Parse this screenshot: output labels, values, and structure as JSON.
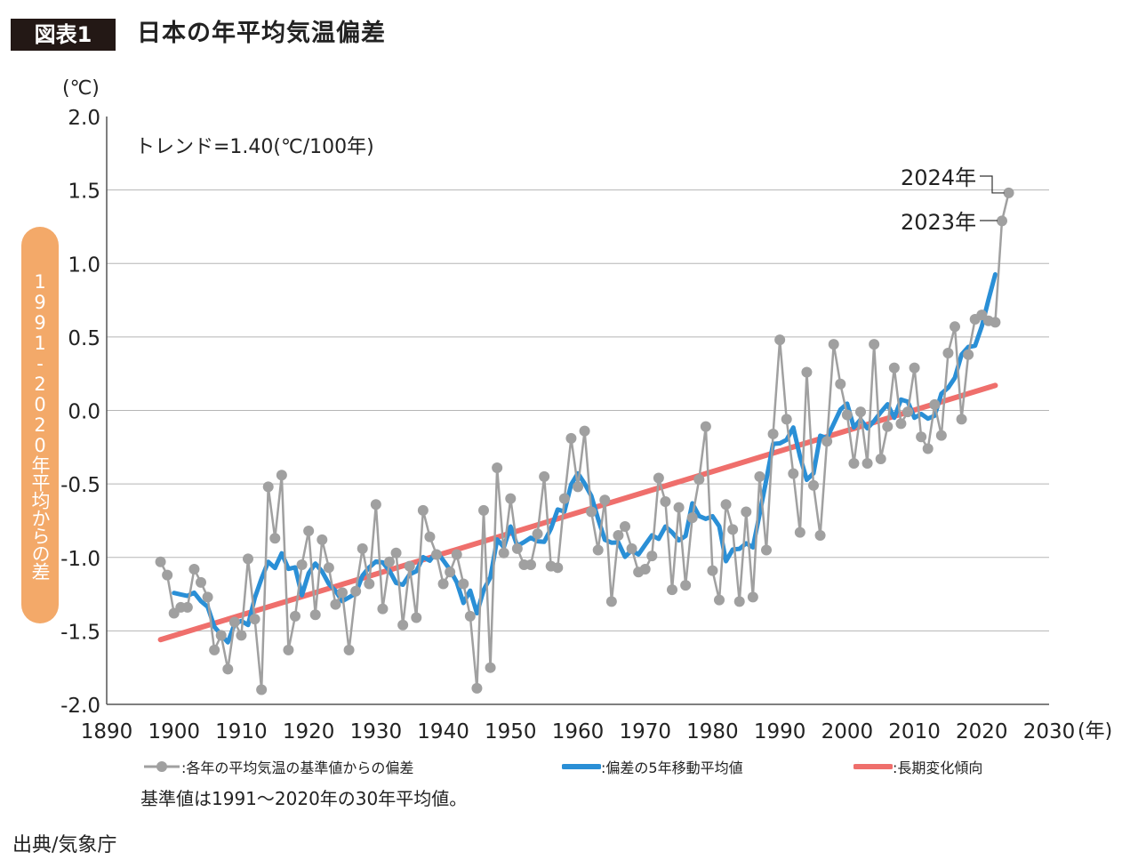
{
  "header": {
    "figure_label": "図表1",
    "title": "日本の年平均気温偏差"
  },
  "side_label": "1991-2020年平均からの差",
  "note": "基準値は1991〜2020年の30年平均値。",
  "source": "出典/気象庁",
  "colors": {
    "points": "#a0a0a0",
    "moving_avg": "#2a8fd6",
    "trend": "#ef6f6c",
    "pill": "#f3a969"
  },
  "chart_data": {
    "type": "line",
    "title": "日本の年平均気温偏差",
    "ylabel": "(℃)",
    "xlabel": "(年)",
    "xlim": [
      1890,
      2030
    ],
    "ylim": [
      -2.0,
      2.0
    ],
    "x_ticks": [
      1890,
      1900,
      1910,
      1920,
      1930,
      1940,
      1950,
      1960,
      1970,
      1980,
      1990,
      2000,
      2010,
      2020,
      2030
    ],
    "y_ticks": [
      "2.0",
      "1.5",
      "1.0",
      "0.5",
      "0.0",
      "-0.5",
      "-1.0",
      "-1.5",
      "-2.0"
    ],
    "grid": true,
    "trend_text": "トレンド=1.40(℃/100年)",
    "legend": [
      ":各年の平均気温の基準値からの偏差",
      ":偏差の5年移動平均値",
      ":長期変化傾向"
    ],
    "legend_position": "bottom",
    "annotations": [
      {
        "year": 2024,
        "text": "2024年"
      },
      {
        "year": 2023,
        "text": "2023年"
      }
    ],
    "series": [
      {
        "name": "各年の平均気温の基準値からの偏差",
        "start_year": 1898,
        "values": [
          -1.03,
          -1.12,
          -1.38,
          -1.34,
          -1.34,
          -1.08,
          -1.17,
          -1.27,
          -1.63,
          -1.53,
          -1.76,
          -1.44,
          -1.53,
          -1.01,
          -1.42,
          -1.9,
          -0.52,
          -0.87,
          -0.44,
          -1.63,
          -1.4,
          -1.05,
          -0.82,
          -1.39,
          -0.88,
          -1.07,
          -1.32,
          -1.24,
          -1.63,
          -1.23,
          -0.94,
          -1.18,
          -0.64,
          -1.35,
          -1.03,
          -0.97,
          -1.46,
          -1.06,
          -1.41,
          -0.68,
          -0.86,
          -0.98,
          -1.18,
          -1.1,
          -0.98,
          -1.18,
          -1.4,
          -1.89,
          -0.68,
          -1.75,
          -0.39,
          -0.97,
          -0.6,
          -0.94,
          -1.05,
          -1.05,
          -0.84,
          -0.45,
          -1.06,
          -1.07,
          -0.6,
          -0.19,
          -0.52,
          -0.14,
          -0.69,
          -0.95,
          -0.61,
          -1.3,
          -0.85,
          -0.79,
          -0.94,
          -1.1,
          -1.08,
          -0.99,
          -0.46,
          -0.62,
          -1.22,
          -0.66,
          -1.19,
          -0.73,
          -0.47,
          -0.11,
          -1.09,
          -1.29,
          -0.64,
          -0.81,
          -1.3,
          -0.69,
          -1.27,
          -0.45,
          -0.95,
          -0.16,
          0.48,
          -0.06,
          -0.43,
          -0.83,
          0.26,
          -0.51,
          -0.85,
          -0.21,
          0.45,
          0.18,
          -0.03,
          -0.36,
          -0.01,
          -0.36,
          0.45,
          -0.33,
          -0.11,
          0.29,
          -0.09,
          -0.01,
          0.29,
          -0.18,
          -0.26,
          0.04,
          -0.17,
          0.39,
          0.57,
          -0.06,
          0.38,
          0.62,
          0.65,
          0.61,
          0.6,
          1.29,
          1.48
        ]
      },
      {
        "name": "偏差の5年移動平均値",
        "method": "5-year centered moving average"
      },
      {
        "name": "長期変化傾向",
        "x": [
          1898,
          2022
        ],
        "y": [
          -1.56,
          0.17
        ]
      }
    ]
  }
}
